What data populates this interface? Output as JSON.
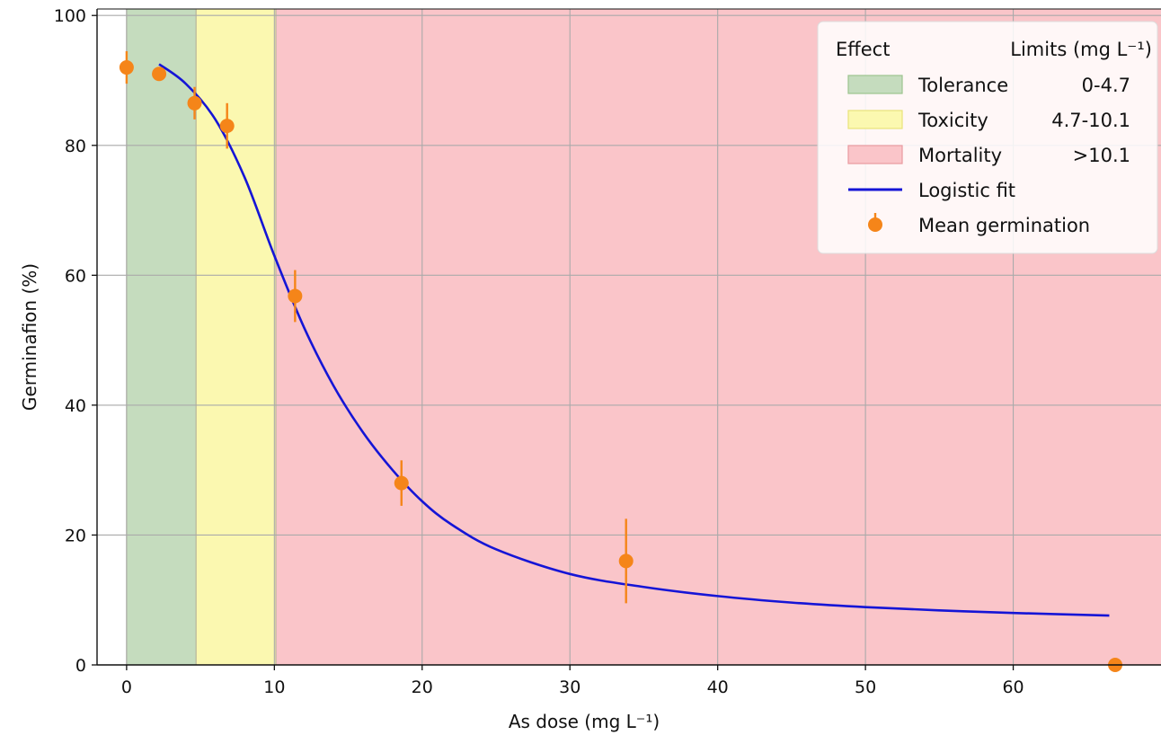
{
  "chart_data": {
    "type": "scatter",
    "xlabel": "As dose (mg L⁻¹)",
    "ylabel": "Germinafion (%)",
    "xlim": [
      -2,
      70
    ],
    "ylim": [
      0,
      101
    ],
    "x_ticks": [
      0,
      10,
      20,
      30,
      40,
      50,
      60
    ],
    "y_ticks": [
      0,
      20,
      40,
      60,
      80,
      100
    ],
    "grid": true,
    "legend_position": "top-right",
    "legend": {
      "header_effect": "Effect",
      "header_limits": "Limits (mg L⁻¹)",
      "entries": [
        {
          "label": "Tolerance",
          "limits": "0-4.7"
        },
        {
          "label": "Toxicity",
          "limits": "4.7-10.1"
        },
        {
          "label": "Mortality",
          "limits": ">10.1"
        },
        {
          "label": "Logistic fit",
          "limits": ""
        },
        {
          "label": "Mean germination",
          "limits": ""
        }
      ]
    },
    "regions": [
      {
        "name": "Tolerance",
        "x_start": 0,
        "x_end": 4.7,
        "color": "#c5dcbe"
      },
      {
        "name": "Toxicity",
        "x_start": 4.7,
        "x_end": 10.1,
        "color": "#fbf8b0"
      },
      {
        "name": "Mortality",
        "x_start": 10.1,
        "x_end": 70,
        "color": "#fac5c9"
      }
    ],
    "series": [
      {
        "name": "Mean germination",
        "type": "scatter",
        "color": "#f58519",
        "x": [
          0,
          2.2,
          4.6,
          6.8,
          11.4,
          18.6,
          33.8,
          66.9
        ],
        "y": [
          92,
          91,
          86.5,
          83,
          56.8,
          28,
          16,
          0
        ],
        "err": [
          2.5,
          1.0,
          2.5,
          3.5,
          4.0,
          3.5,
          6.5,
          0
        ]
      },
      {
        "name": "Logistic fit",
        "type": "line",
        "color": "#1515d6",
        "x": [
          2.2,
          4,
          6,
          8,
          10,
          12,
          14,
          16,
          18,
          20,
          22,
          25,
          30,
          35,
          40,
          45,
          50,
          55,
          60,
          66.5
        ],
        "y": [
          92.5,
          89.5,
          84,
          75,
          63,
          52,
          43,
          35.8,
          30,
          25.2,
          21.6,
          17.8,
          14,
          12,
          10.6,
          9.6,
          8.9,
          8.4,
          8.0,
          7.6
        ]
      }
    ]
  }
}
